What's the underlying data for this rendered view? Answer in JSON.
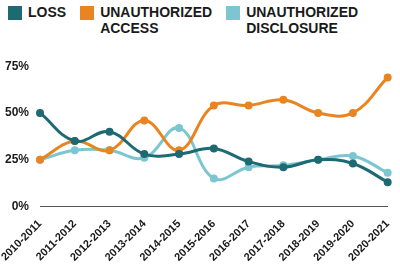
{
  "chart_data": {
    "type": "line",
    "categories": [
      "2010-2011",
      "2011-2012",
      "2012-2013",
      "2013-2014",
      "2014-2015",
      "2015-2016",
      "2016-2017",
      "2017-2018",
      "2018-2019",
      "2019-2020",
      "2020-2021"
    ],
    "series": [
      {
        "name": "LOSS",
        "color": "#1d6a72",
        "values": [
          50,
          35,
          40,
          28,
          28,
          31,
          24,
          21,
          25,
          23,
          13
        ]
      },
      {
        "name": "UNAUTHORIZED ACCESS",
        "color": "#ea8420",
        "values": [
          25,
          35,
          30,
          46,
          30,
          54,
          54,
          57,
          50,
          50,
          69
        ]
      },
      {
        "name": "UNAUTHORIZED DISCLOSURE",
        "color": "#7cc6d2",
        "values": [
          25,
          30,
          30,
          26,
          42,
          15,
          21,
          22,
          25,
          27,
          18
        ]
      }
    ],
    "ylim": [
      0,
      75
    ],
    "yticks": [
      {
        "value": 0,
        "label": "0%"
      },
      {
        "value": 25,
        "label": "25%"
      },
      {
        "value": 50,
        "label": "50%"
      },
      {
        "value": 75,
        "label": "75%"
      }
    ],
    "grid": false,
    "legend": "top",
    "marker": "circle"
  }
}
